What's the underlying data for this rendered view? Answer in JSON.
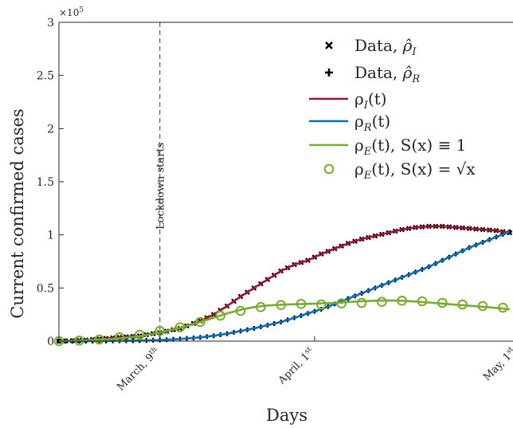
{
  "chart_data": {
    "type": "line",
    "xlabel": "Days",
    "ylabel": "Current confirmed cases",
    "y_multiplier": "×10",
    "y_multiplier_exp": "5",
    "ylim": [
      0,
      300000
    ],
    "xlim": [
      0,
      67
    ],
    "y_ticks": [
      {
        "v": 0,
        "label": "0"
      },
      {
        "v": 50000,
        "label": "0.5"
      },
      {
        "v": 100000,
        "label": "1"
      },
      {
        "v": 150000,
        "label": "1.5"
      },
      {
        "v": 200000,
        "label": "2"
      },
      {
        "v": 250000,
        "label": "2.5"
      },
      {
        "v": 300000,
        "label": "3"
      }
    ],
    "x_ticks": [
      {
        "v": 15,
        "label": "March, 9",
        "sup": "th"
      },
      {
        "v": 38,
        "label": "April, 1",
        "sup": "st"
      },
      {
        "v": 68,
        "label": "May, 1",
        "sup": "st"
      }
    ],
    "annotation": {
      "x": 15,
      "label": "Lockdown starts"
    },
    "legend_position": "top-right",
    "legend": [
      {
        "key": "dataI",
        "label": "Data, ",
        "math": "ρ̂",
        "sub": "I"
      },
      {
        "key": "dataR",
        "label": "Data, ",
        "math": "ρ̂",
        "sub": "R"
      },
      {
        "key": "rhoI",
        "label": "ρ",
        "sub": "I",
        "tail": "(t)"
      },
      {
        "key": "rhoR",
        "label": "ρ",
        "sub": "R",
        "tail": "(t)"
      },
      {
        "key": "rhoE1",
        "label": "ρ",
        "sub": "E",
        "tail": "(t), S(x) ≡ 1"
      },
      {
        "key": "rhoEs",
        "label": "ρ",
        "sub": "E",
        "tail": "(t), S(x) = √x"
      }
    ],
    "colors": {
      "rhoI": "#a2142f",
      "rhoR": "#0072bd",
      "rhoE": "#77ac30",
      "data": "#000000"
    },
    "series": [
      {
        "name": "ρ_I(t)",
        "key": "rhoI",
        "x": [
          0,
          4,
          8,
          12,
          15,
          18,
          21,
          23,
          25,
          27,
          29,
          31,
          33,
          35,
          37,
          39,
          41,
          43,
          45,
          47,
          49,
          51,
          53,
          55,
          57,
          59,
          61,
          63,
          65,
          67
        ],
        "y": [
          0,
          1000,
          3000,
          5000,
          8000,
          12000,
          19000,
          25000,
          33000,
          42000,
          50000,
          58000,
          66000,
          72000,
          76000,
          82000,
          87000,
          92000,
          96000,
          99000,
          102000,
          105000,
          107000,
          108000,
          108000,
          107000,
          106000,
          105000,
          104000,
          102000
        ]
      },
      {
        "name": "ρ_R(t)",
        "key": "rhoR",
        "x": [
          0,
          4,
          8,
          12,
          15,
          18,
          21,
          23,
          25,
          27,
          29,
          31,
          33,
          35,
          37,
          39,
          41,
          43,
          45,
          47,
          49,
          51,
          53,
          55,
          57,
          59,
          61,
          63,
          65,
          67
        ],
        "y": [
          0,
          0,
          200,
          500,
          1000,
          2000,
          3500,
          5000,
          7000,
          9500,
          12000,
          15000,
          18000,
          22000,
          26000,
          30000,
          35000,
          40000,
          45000,
          50000,
          55000,
          60000,
          65000,
          70000,
          76000,
          82000,
          88000,
          93000,
          98000,
          103000
        ]
      },
      {
        "name": "ρ_E(t), S(x) ≡ 1",
        "key": "rhoE1",
        "x": [
          0,
          4,
          8,
          12,
          15,
          18,
          21,
          23,
          25,
          27,
          29,
          31,
          33,
          35,
          37,
          39,
          41,
          43,
          45,
          47,
          49,
          51,
          53,
          55,
          57,
          59,
          61,
          63,
          65,
          67
        ],
        "y": [
          0,
          800,
          2000,
          4500,
          8000,
          12500,
          18000,
          22000,
          26000,
          29500,
          32000,
          33500,
          34300,
          34700,
          35000,
          35500,
          36000,
          36800,
          37500,
          38000,
          38300,
          38000,
          37300,
          36300,
          35300,
          34300,
          33300,
          32300,
          31300,
          30000
        ]
      },
      {
        "name": "ρ_E(t), S(x) = √x",
        "key": "rhoEs",
        "x": [
          0,
          3,
          6,
          9,
          12,
          15,
          18,
          21,
          24,
          27,
          30,
          33,
          36,
          39,
          42,
          45,
          48,
          51,
          54,
          57,
          60,
          63,
          66
        ],
        "y": [
          0,
          500,
          1500,
          3500,
          6000,
          9500,
          13000,
          18000,
          24000,
          28500,
          32000,
          34000,
          35000,
          34500,
          35500,
          36000,
          37000,
          38000,
          37500,
          36000,
          34500,
          33000,
          31500
        ]
      }
    ]
  }
}
